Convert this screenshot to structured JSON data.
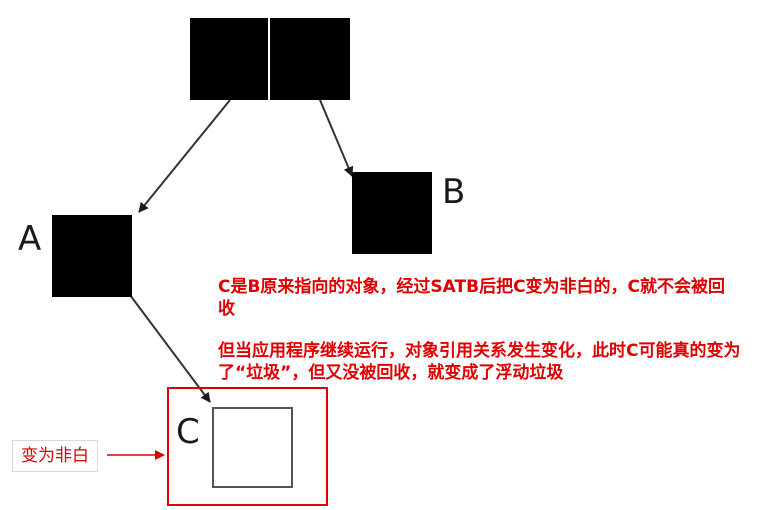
{
  "nodes": {
    "a_label": "A",
    "b_label": "B",
    "c_label": "C"
  },
  "annotations": {
    "note_1": "C是B原来指向的对象，经过SATB后把C变为非白的，C就不会被回收",
    "note_2": "但当应用程序继续运行，对象引用关系发生变化，此时C可能真的变为了“垃圾”，但又没被回收，就变成了浮动垃圾",
    "side_label": "变为非白"
  },
  "colors": {
    "node_fill": "#000000",
    "highlight": "#e00000",
    "edge": "#333333"
  }
}
